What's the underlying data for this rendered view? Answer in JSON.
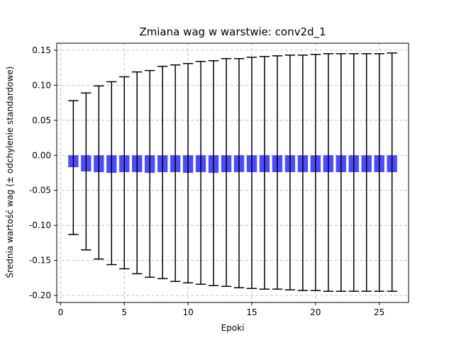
{
  "chart_data": {
    "type": "bar",
    "title": "Zmiana wag w warstwie: conv2d_1",
    "xlabel": "Epoki",
    "ylabel": "Średnia wartość wag (± odchylenie standardowe)",
    "xlim": [
      -0.3,
      27.3
    ],
    "ylim": [
      -0.21,
      0.16
    ],
    "xticks": [
      0,
      5,
      10,
      15,
      20,
      25
    ],
    "yticks": [
      -0.2,
      -0.15,
      -0.1,
      -0.05,
      0.0,
      0.05,
      0.1,
      0.15
    ],
    "grid": true,
    "bar_color": "#0000ff",
    "bar_alpha": 0.7,
    "error_color": "#000000",
    "series": [
      {
        "x": [
          1,
          2,
          3,
          4,
          5,
          6,
          7,
          8,
          9,
          10,
          11,
          12,
          13,
          14,
          15,
          16,
          17,
          18,
          19,
          20,
          21,
          22,
          23,
          24,
          25,
          26
        ],
        "mean": [
          -0.017,
          -0.023,
          -0.024,
          -0.025,
          -0.024,
          -0.024,
          -0.025,
          -0.024,
          -0.024,
          -0.025,
          -0.024,
          -0.025,
          -0.024,
          -0.024,
          -0.024,
          -0.024,
          -0.024,
          -0.024,
          -0.024,
          -0.024,
          -0.024,
          -0.024,
          -0.024,
          -0.024,
          -0.024,
          -0.024
        ],
        "upper": [
          0.078,
          0.089,
          0.099,
          0.105,
          0.112,
          0.119,
          0.121,
          0.127,
          0.129,
          0.131,
          0.134,
          0.135,
          0.138,
          0.138,
          0.14,
          0.141,
          0.142,
          0.143,
          0.143,
          0.144,
          0.145,
          0.145,
          0.145,
          0.145,
          0.145,
          0.146
        ],
        "lower": [
          -0.113,
          -0.135,
          -0.148,
          -0.156,
          -0.162,
          -0.169,
          -0.174,
          -0.176,
          -0.18,
          -0.182,
          -0.184,
          -0.186,
          -0.187,
          -0.189,
          -0.19,
          -0.191,
          -0.191,
          -0.192,
          -0.193,
          -0.193,
          -0.194,
          -0.194,
          -0.194,
          -0.194,
          -0.194,
          -0.194
        ]
      }
    ]
  }
}
